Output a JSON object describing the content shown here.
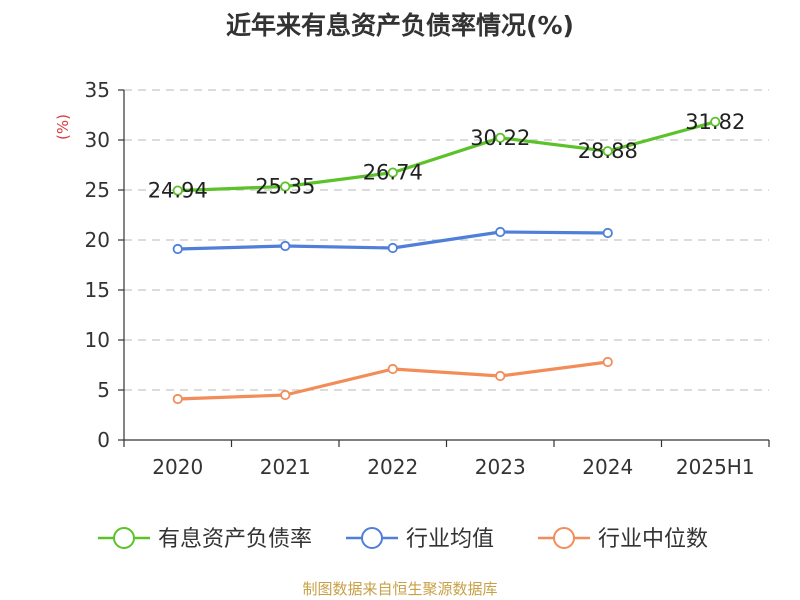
{
  "chart_data": {
    "type": "line",
    "title": "近年来有息资产负债率情况(%)",
    "ylabel": "(%)",
    "categories": [
      "2020",
      "2021",
      "2022",
      "2023",
      "2024",
      "2025H1"
    ],
    "ylim": [
      0,
      35
    ],
    "yticks": [
      0,
      5,
      10,
      15,
      20,
      25,
      30,
      35
    ],
    "grid": true,
    "legend_position": "bottom",
    "series": [
      {
        "name": "有息资产负债率",
        "color": "#5cc22a",
        "values": [
          24.94,
          25.35,
          26.74,
          30.22,
          28.88,
          31.82
        ],
        "labels": [
          "24.94",
          "25.35",
          "26.74",
          "30.22",
          "28.88",
          "31.82"
        ]
      },
      {
        "name": "行业均值",
        "color": "#4f7fd9",
        "values": [
          19.1,
          19.4,
          19.2,
          20.8,
          20.7,
          null
        ]
      },
      {
        "name": "行业中位数",
        "color": "#f28d5a",
        "values": [
          4.1,
          4.5,
          7.1,
          6.4,
          7.8,
          null
        ]
      }
    ]
  },
  "source": "制图数据来自恒生聚源数据库"
}
